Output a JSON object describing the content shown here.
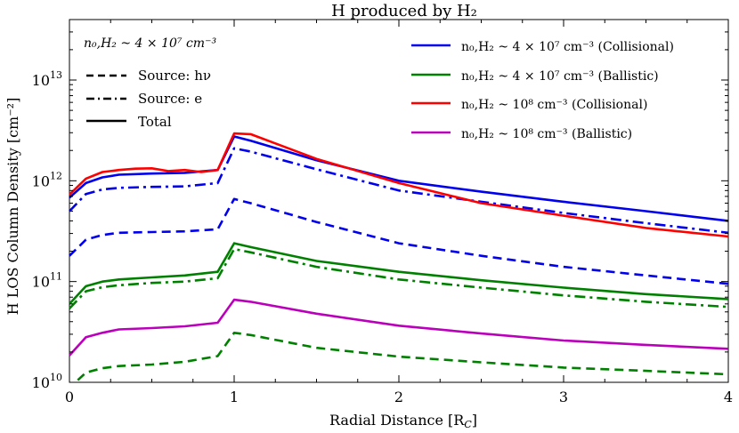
{
  "chart_data": {
    "type": "line",
    "title": "H produced by H₂",
    "xlabel": "Radial Distance [R",
    "xlabel_sub": "C",
    "xlabel_tail": "]",
    "ylabel": "H LOS Column Density [cm⁻²]",
    "xlim": [
      0,
      4
    ],
    "ylim_log10": [
      10,
      13.6
    ],
    "yscale": "log",
    "x_ticks": [
      "0",
      "1",
      "2",
      "3",
      "4"
    ],
    "x_tick_values": [
      0,
      1,
      2,
      3,
      4
    ],
    "y_ticks": [
      {
        "base": "10",
        "exp": "10",
        "value": 10
      },
      {
        "base": "10",
        "exp": "11",
        "value": 11
      },
      {
        "base": "10",
        "exp": "12",
        "value": 12
      },
      {
        "base": "10",
        "exp": "13",
        "value": 13
      }
    ],
    "legend_left": {
      "header": "n₀,H₂ ~ 4 × 10⁷ cm⁻³",
      "entries": [
        {
          "label": "Source: hν",
          "style": "dashed"
        },
        {
          "label": "Source: e",
          "style": "dashdot"
        },
        {
          "label": "Total",
          "style": "solid"
        }
      ]
    },
    "legend_right": [
      {
        "label": "n₀,H₂ ~ 4 × 10⁷ cm⁻³ (Collisional)",
        "color": "#0000ee"
      },
      {
        "label": "n₀,H₂ ~ 4 × 10⁷ cm⁻³ (Ballistic)",
        "color": "#008000"
      },
      {
        "label": "n₀,H₂ ~ 10⁸ cm⁻³ (Collisional)",
        "color": "#ff0000"
      },
      {
        "label": "n₀,H₂ ~ 10⁸ cm⁻³ (Ballistic)",
        "color": "#bb00bb"
      }
    ],
    "series": [
      {
        "name": "blue total",
        "color": "#0000ee",
        "style": "solid",
        "x": [
          0,
          0.1,
          0.2,
          0.3,
          0.5,
          0.7,
          0.9,
          1.0,
          1.1,
          1.5,
          2.0,
          2.5,
          3.0,
          3.5,
          4.0
        ],
        "y": [
          680000000000.0,
          950000000000.0,
          1080000000000.0,
          1150000000000.0,
          1180000000000.0,
          1200000000000.0,
          1280000000000.0,
          2750000000000.0,
          2500000000000.0,
          1600000000000.0,
          1000000000000.0,
          780000000000.0,
          620000000000.0,
          500000000000.0,
          400000000000.0
        ]
      },
      {
        "name": "blue e",
        "color": "#0000ee",
        "style": "dashdot",
        "x": [
          0,
          0.1,
          0.2,
          0.3,
          0.5,
          0.7,
          0.9,
          1.0,
          1.1,
          1.5,
          2.0,
          2.5,
          3.0,
          3.5,
          4.0
        ],
        "y": [
          500000000000.0,
          740000000000.0,
          820000000000.0,
          850000000000.0,
          870000000000.0,
          880000000000.0,
          950000000000.0,
          2100000000000.0,
          1950000000000.0,
          1300000000000.0,
          800000000000.0,
          620000000000.0,
          480000000000.0,
          380000000000.0,
          305000000000.0
        ]
      },
      {
        "name": "blue hv",
        "color": "#0000ee",
        "style": "dashed",
        "x": [
          0,
          0.1,
          0.2,
          0.3,
          0.5,
          0.7,
          0.9,
          1.0,
          1.1,
          1.5,
          2.0,
          2.5,
          3.0,
          3.5,
          4.0
        ],
        "y": [
          180000000000.0,
          260000000000.0,
          290000000000.0,
          305000000000.0,
          310000000000.0,
          315000000000.0,
          330000000000.0,
          660000000000.0,
          600000000000.0,
          390000000000.0,
          240000000000.0,
          180000000000.0,
          140000000000.0,
          115000000000.0,
          95000000000.0
        ]
      },
      {
        "name": "green total",
        "color": "#008000",
        "style": "solid",
        "x": [
          0,
          0.1,
          0.2,
          0.3,
          0.5,
          0.7,
          0.9,
          1.0,
          1.1,
          1.5,
          2.0,
          2.5,
          3.0,
          3.5,
          4.0
        ],
        "y": [
          60000000000.0,
          90000000000.0,
          100000000000.0,
          105000000000.0,
          110000000000.0,
          115000000000.0,
          125000000000.0,
          240000000000.0,
          220000000000.0,
          160000000000.0,
          125000000000.0,
          103000000000.0,
          87000000000.0,
          75000000000.0,
          67000000000.0
        ]
      },
      {
        "name": "green e",
        "color": "#008000",
        "style": "dashdot",
        "x": [
          0,
          0.1,
          0.2,
          0.3,
          0.5,
          0.7,
          0.9,
          1.0,
          1.1,
          1.5,
          2.0,
          2.5,
          3.0,
          3.5,
          4.0
        ],
        "y": [
          54000000000.0,
          80000000000.0,
          88000000000.0,
          92000000000.0,
          97000000000.0,
          100000000000.0,
          108000000000.0,
          210000000000.0,
          195000000000.0,
          140000000000.0,
          105000000000.0,
          87000000000.0,
          73000000000.0,
          63000000000.0,
          56000000000.0
        ]
      },
      {
        "name": "green hv",
        "color": "#008000",
        "style": "dashed",
        "x": [
          0.05,
          0.1,
          0.2,
          0.3,
          0.5,
          0.7,
          0.9,
          1.0,
          1.1,
          1.5,
          2.0,
          2.5,
          3.0,
          3.5,
          4.0
        ],
        "y": [
          10500000000.0,
          12500000000.0,
          13800000000.0,
          14500000000.0,
          15000000000.0,
          16000000000.0,
          18200000000.0,
          31000000000.0,
          29500000000.0,
          22000000000.0,
          18000000000.0,
          15800000000.0,
          14000000000.0,
          13000000000.0,
          12000000000.0
        ]
      },
      {
        "name": "red total",
        "color": "#ff0000",
        "style": "solid",
        "x": [
          0,
          0.1,
          0.2,
          0.3,
          0.4,
          0.5,
          0.6,
          0.7,
          0.8,
          0.9,
          1.0,
          1.1,
          1.25,
          1.5,
          2.0,
          2.5,
          3.0,
          3.5,
          4.0
        ],
        "y": [
          730000000000.0,
          1050000000000.0,
          1220000000000.0,
          1280000000000.0,
          1320000000000.0,
          1330000000000.0,
          1250000000000.0,
          1280000000000.0,
          1220000000000.0,
          1280000000000.0,
          2950000000000.0,
          2900000000000.0,
          2350000000000.0,
          1650000000000.0,
          950000000000.0,
          600000000000.0,
          450000000000.0,
          340000000000.0,
          280000000000.0
        ]
      },
      {
        "name": "magenta total",
        "color": "#bb00bb",
        "style": "solid",
        "x": [
          0,
          0.1,
          0.2,
          0.3,
          0.5,
          0.7,
          0.9,
          1.0,
          1.1,
          1.5,
          2.0,
          2.5,
          3.0,
          3.5,
          4.0
        ],
        "y": [
          18500000000.0,
          28000000000.0,
          31000000000.0,
          33500000000.0,
          34500000000.0,
          36000000000.0,
          39000000000.0,
          66000000000.0,
          63000000000.0,
          48000000000.0,
          36500000000.0,
          30500000000.0,
          26000000000.0,
          23500000000.0,
          21500000000.0
        ]
      }
    ]
  }
}
